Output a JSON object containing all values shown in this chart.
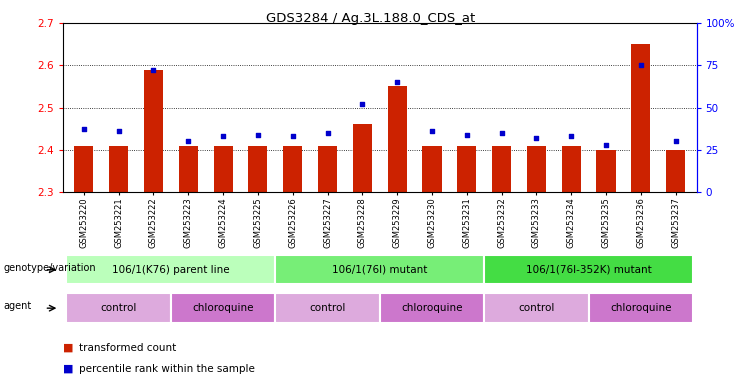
{
  "title": "GDS3284 / Ag.3L.188.0_CDS_at",
  "samples": [
    "GSM253220",
    "GSM253221",
    "GSM253222",
    "GSM253223",
    "GSM253224",
    "GSM253225",
    "GSM253226",
    "GSM253227",
    "GSM253228",
    "GSM253229",
    "GSM253230",
    "GSM253231",
    "GSM253232",
    "GSM253233",
    "GSM253234",
    "GSM253235",
    "GSM253236",
    "GSM253237"
  ],
  "bar_values": [
    2.41,
    2.41,
    2.59,
    2.41,
    2.41,
    2.41,
    2.41,
    2.41,
    2.46,
    2.55,
    2.41,
    2.41,
    2.41,
    2.41,
    2.41,
    2.4,
    2.65,
    2.4
  ],
  "blue_values": [
    37,
    36,
    72,
    30,
    33,
    34,
    33,
    35,
    52,
    65,
    36,
    34,
    35,
    32,
    33,
    28,
    75,
    30
  ],
  "ymin": 2.3,
  "ymax": 2.7,
  "bar_color": "#cc2200",
  "blue_color": "#0000cc",
  "genotype_groups": [
    {
      "label": "106/1(K76) parent line",
      "start": 0,
      "end": 5,
      "color": "#bbffbb"
    },
    {
      "label": "106/1(76I) mutant",
      "start": 6,
      "end": 11,
      "color": "#77ee77"
    },
    {
      "label": "106/1(76I-352K) mutant",
      "start": 12,
      "end": 17,
      "color": "#44dd44"
    }
  ],
  "agent_groups": [
    {
      "label": "control",
      "start": 0,
      "end": 2,
      "color": "#ddaadd"
    },
    {
      "label": "chloroquine",
      "start": 3,
      "end": 5,
      "color": "#cc77cc"
    },
    {
      "label": "control",
      "start": 6,
      "end": 8,
      "color": "#ddaadd"
    },
    {
      "label": "chloroquine",
      "start": 9,
      "end": 11,
      "color": "#cc77cc"
    },
    {
      "label": "control",
      "start": 12,
      "end": 14,
      "color": "#ddaadd"
    },
    {
      "label": "chloroquine",
      "start": 15,
      "end": 17,
      "color": "#cc77cc"
    }
  ],
  "legend_items": [
    {
      "label": "transformed count",
      "color": "#cc2200"
    },
    {
      "label": "percentile rank within the sample",
      "color": "#0000cc"
    }
  ]
}
